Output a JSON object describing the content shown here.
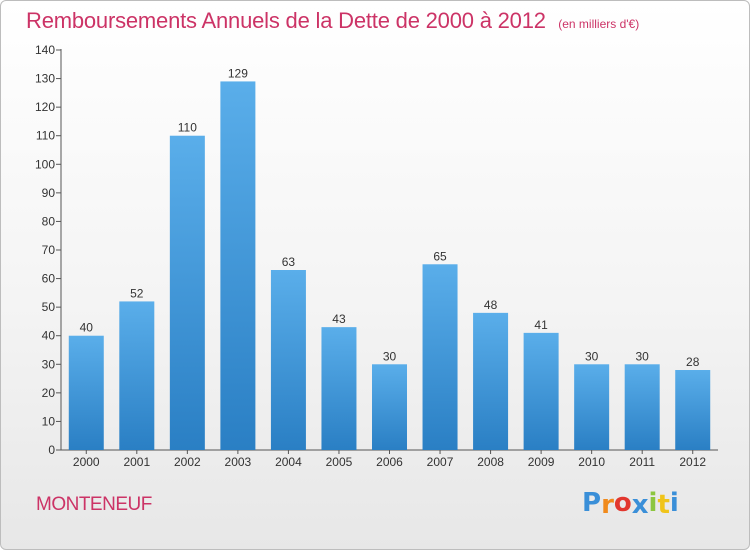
{
  "chart_data": {
    "type": "bar",
    "title": "Remboursements Annuels de la Dette de 2000 à 2012",
    "unit_label": "(en milliers d'€)",
    "categories": [
      "2000",
      "2001",
      "2002",
      "2003",
      "2004",
      "2005",
      "2006",
      "2007",
      "2008",
      "2009",
      "2010",
      "2011",
      "2012"
    ],
    "values": [
      40,
      52,
      110,
      129,
      63,
      43,
      30,
      65,
      48,
      41,
      30,
      30,
      28
    ],
    "ylim": [
      0,
      140
    ],
    "yticks": [
      0,
      10,
      20,
      30,
      40,
      50,
      60,
      70,
      80,
      90,
      100,
      110,
      120,
      130,
      140
    ],
    "grid": false,
    "legend": "none",
    "bar_color_top": "#5aaeea",
    "bar_color_bottom": "#2a7fc4"
  },
  "commune": "MONTENEUF",
  "logo": {
    "letters": [
      "P",
      "r",
      "o",
      "x",
      "i",
      "t",
      "i"
    ],
    "colors": [
      "#3a8fd8",
      "#f08a1c",
      "#e2372e",
      "#3a8fd8",
      "#8cc63f",
      "#f0c419",
      "#3a8fd8"
    ]
  },
  "colors": {
    "title": "#cc3366",
    "axis": "#555555"
  }
}
